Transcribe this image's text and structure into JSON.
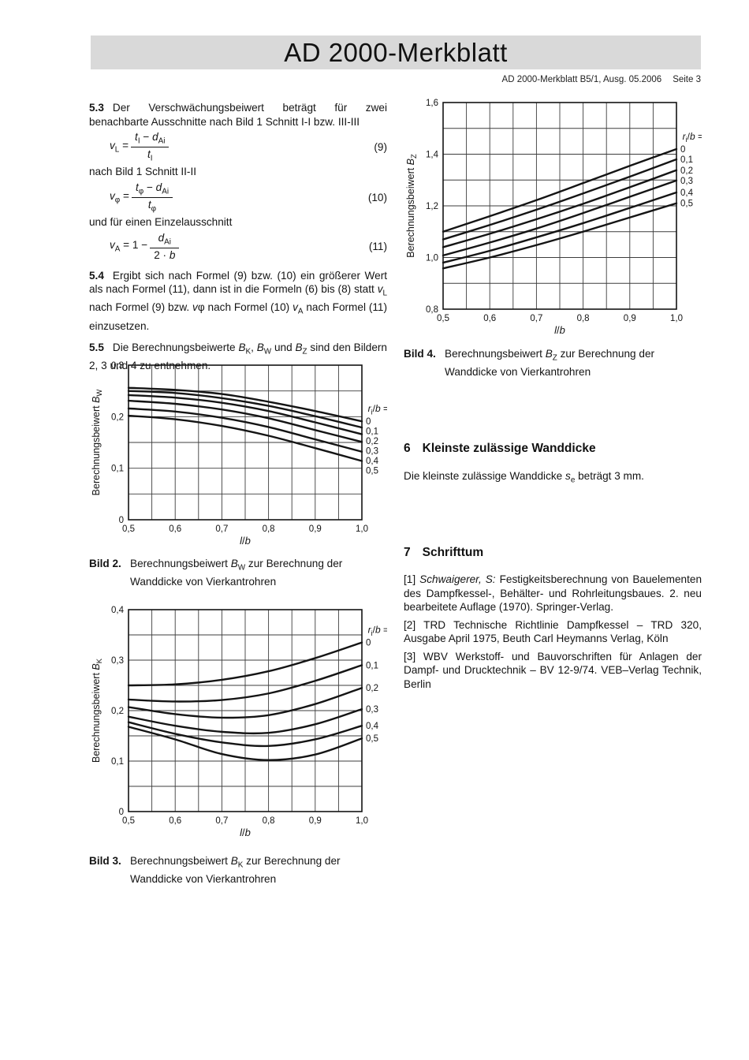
{
  "header": {
    "title": "AD 2000-Merkblatt",
    "doc_ref": "AD 2000-Merkblatt B5/1, Ausg. 05.2006",
    "page_no": "Seite 3"
  },
  "paragraphs": {
    "p53": {
      "num": "5.3",
      "text": "Der Verschwächungsbeiwert beträgt für zwei benachbarte Ausschnitte nach Bild 1 Schnitt I-I bzw. III-III"
    },
    "between1": "nach Bild 1 Schnitt II-II",
    "between2": "und für einen Einzelausschnitt",
    "p54": {
      "num": "5.4",
      "text": "Ergibt sich nach Formel (9) bzw. (10) ein größerer Wert als nach Formel (11), dann ist in die Formeln (6) bis (8) statt *v*~L~ nach Formel (9) bzw. *v*φ nach Formel (10) *v*~A~ nach Formel (11) einzusetzen."
    },
    "p55": {
      "num": "5.5",
      "text": "Die Berechnungsbeiwerte *B*~K~, *B*~W~ und *B*~Z~ sind den Bildern 2, 3 und 4 zu entnehmen."
    }
  },
  "formulas": [
    {
      "lhs": "*v*~L~ = ",
      "num": "*t*~I~ − *d*~Ai~",
      "den": "*t*~I~",
      "tag": "(9)"
    },
    {
      "lhs": "*v*~φ~ = ",
      "num": "*t*~φ~ − *d*~Ai~",
      "den": "*t*~φ~",
      "tag": "(10)"
    },
    {
      "lhs": "*v*~A~ = 1 − ",
      "num": "*d*~Ai~",
      "den": "2 · *b*",
      "tag": "(11)"
    }
  ],
  "figures": {
    "bild2": {
      "label": "Bild 2.",
      "caption": "Berechnungsbeiwert *B*~W~ zur Berechnung der Wanddicke von Vierkantrohren"
    },
    "bild3": {
      "label": "Bild 3.",
      "caption": "Berechnungsbeiwert *B*~K~ zur Berechnung der Wanddicke von Vierkantrohren"
    },
    "bild4": {
      "label": "Bild 4.",
      "caption": "Berechnungsbeiwert *B*~Z~ zur Berechnung der Wanddicke von Vierkantrohren"
    }
  },
  "sections": {
    "s6": {
      "num": "6",
      "title": "Kleinste zulässige Wanddicke",
      "body": "Die kleinste zulässige Wanddicke *s*~e~ beträgt 3 mm."
    },
    "s7": {
      "num": "7",
      "title": "Schrifttum",
      "refs": [
        "[1] *Schwaigerer, S:* Festigkeitsberechnung von Bauelementen des Dampfkessel-, Behälter- und Rohrleitungsbaues. 2. neu bearbeitete Auflage (1970). Springer-Verlag.",
        "[2] TRD Technische Richtlinie Dampfkessel – TRD 320, Ausgabe April 1975, Beuth Carl Heymanns Verlag, Köln",
        "[3] WBV Werkstoff- und Bauvorschriften für Anlagen der Dampf- und Drucktechnik – BV 12-9/74. VEB–Verlag Technik, Berlin"
      ]
    }
  },
  "chart_data": [
    {
      "id": "bild2",
      "type": "line",
      "title": "",
      "xlabel": "*l*/*b*",
      "ylabel": "Berechnungsbeiwert *B*~W~",
      "xlim": [
        0.5,
        1.0
      ],
      "ylim": [
        0,
        0.3
      ],
      "xticks": {
        "values": [
          0.5,
          0.6,
          0.7,
          0.8,
          0.9,
          1.0
        ],
        "labels": [
          "0,5",
          "0,6",
          "0,7",
          "0,8",
          "0,9",
          "1,0"
        ]
      },
      "yticks": {
        "values": [
          0,
          0.1,
          0.2,
          0.3
        ],
        "labels": [
          "0",
          "0,1",
          "0,2",
          "0,3"
        ]
      },
      "grid_x_step": 0.05,
      "grid_y_step": 0.05,
      "grid": true,
      "legend_title": "*r*~i~/*b* =",
      "legend_position": "right",
      "x": [
        0.5,
        0.6,
        0.7,
        0.8,
        0.9,
        1.0
      ],
      "series": [
        {
          "name": "0",
          "values": [
            0.256,
            0.252,
            0.244,
            0.229,
            0.211,
            0.191
          ]
        },
        {
          "name": "0,1",
          "values": [
            0.25,
            0.246,
            0.236,
            0.221,
            0.201,
            0.179
          ]
        },
        {
          "name": "0,2",
          "values": [
            0.242,
            0.237,
            0.227,
            0.211,
            0.189,
            0.166
          ]
        },
        {
          "name": "0,3",
          "values": [
            0.231,
            0.225,
            0.214,
            0.197,
            0.174,
            0.151
          ]
        },
        {
          "name": "0,4",
          "values": [
            0.216,
            0.21,
            0.198,
            0.18,
            0.156,
            0.132
          ]
        },
        {
          "name": "0,5",
          "values": [
            0.202,
            0.195,
            0.182,
            0.163,
            0.139,
            0.114
          ]
        }
      ]
    },
    {
      "id": "bild3",
      "type": "line",
      "title": "",
      "xlabel": "*l*/*b*",
      "ylabel": "Berechnungsbeiwert *B*~K~",
      "xlim": [
        0.5,
        1.0
      ],
      "ylim": [
        0,
        0.4
      ],
      "xticks": {
        "values": [
          0.5,
          0.6,
          0.7,
          0.8,
          0.9,
          1.0
        ],
        "labels": [
          "0,5",
          "0,6",
          "0,7",
          "0,8",
          "0,9",
          "1,0"
        ]
      },
      "yticks": {
        "values": [
          0,
          0.1,
          0.2,
          0.3,
          0.4
        ],
        "labels": [
          "0",
          "0,1",
          "0,2",
          "0,3",
          "0,4"
        ]
      },
      "grid_x_step": 0.05,
      "grid_y_step": 0.05,
      "grid": true,
      "legend_title": "*r*~i~/*b* =",
      "legend_position": "right",
      "x": [
        0.5,
        0.6,
        0.7,
        0.8,
        0.9,
        1.0
      ],
      "series": [
        {
          "name": "0",
          "values": [
            0.25,
            0.252,
            0.261,
            0.278,
            0.304,
            0.335
          ]
        },
        {
          "name": "0,1",
          "values": [
            0.222,
            0.218,
            0.221,
            0.234,
            0.259,
            0.29
          ]
        },
        {
          "name": "0,2",
          "values": [
            0.207,
            0.193,
            0.186,
            0.191,
            0.213,
            0.245
          ]
        },
        {
          "name": "0,3",
          "values": [
            0.188,
            0.17,
            0.158,
            0.156,
            0.173,
            0.203
          ]
        },
        {
          "name": "0,4",
          "values": [
            0.177,
            0.154,
            0.137,
            0.13,
            0.143,
            0.17
          ]
        },
        {
          "name": "0,5",
          "values": [
            0.168,
            0.143,
            0.114,
            0.102,
            0.113,
            0.145
          ]
        }
      ]
    },
    {
      "id": "bild4",
      "type": "line",
      "title": "",
      "xlabel": "*l*/*b*",
      "ylabel": "Berechnungsbeiwert *B*~Z~",
      "xlim": [
        0.5,
        1.0
      ],
      "ylim": [
        0.8,
        1.6
      ],
      "xticks": {
        "values": [
          0.5,
          0.6,
          0.7,
          0.8,
          0.9,
          1.0
        ],
        "labels": [
          "0,5",
          "0,6",
          "0,7",
          "0,8",
          "0,9",
          "1,0"
        ]
      },
      "yticks": {
        "values": [
          0.8,
          1.0,
          1.2,
          1.4,
          1.6
        ],
        "labels": [
          "0,8",
          "1,0",
          "1,2",
          "1,4",
          "1,6"
        ]
      },
      "grid_x_step": 0.05,
      "grid_y_step": 0.1,
      "grid": true,
      "legend_title": "*r*~i~/*b* =",
      "legend_position": "right",
      "x": [
        0.5,
        0.6,
        0.7,
        0.8,
        0.9,
        1.0
      ],
      "series": [
        {
          "name": "0",
          "values": [
            1.1,
            1.16,
            1.222,
            1.288,
            1.355,
            1.42
          ]
        },
        {
          "name": "0,1",
          "values": [
            1.07,
            1.126,
            1.185,
            1.248,
            1.313,
            1.38
          ]
        },
        {
          "name": "0,2",
          "values": [
            1.04,
            1.092,
            1.148,
            1.208,
            1.272,
            1.338
          ]
        },
        {
          "name": "0,3",
          "values": [
            1.008,
            1.058,
            1.112,
            1.172,
            1.235,
            1.298
          ]
        },
        {
          "name": "0,4",
          "values": [
            0.98,
            1.026,
            1.078,
            1.133,
            1.192,
            1.252
          ]
        },
        {
          "name": "0,5",
          "values": [
            0.958,
            1.0,
            1.048,
            1.1,
            1.155,
            1.21
          ]
        }
      ]
    }
  ]
}
